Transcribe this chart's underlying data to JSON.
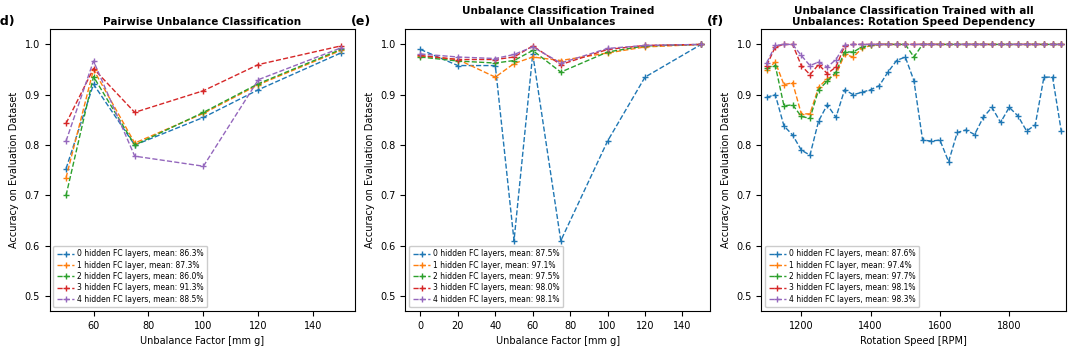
{
  "subplot_d": {
    "title": "Pairwise Unbalance Classification",
    "label": "(d)",
    "xlabel": "Unbalance Factor [mm g]",
    "ylabel": "Accuracy on Evaluation Dataset",
    "x": [
      50,
      60,
      75,
      100,
      120,
      150
    ],
    "series": [
      {
        "label": "0 hidden FC layers, mean: 86.3%",
        "color": "#1f77b4",
        "y": [
          0.753,
          0.921,
          0.8,
          0.855,
          0.91,
          0.983
        ]
      },
      {
        "label": "1 hidden FC layer, mean: 87.3%",
        "color": "#ff7f0e",
        "y": [
          0.735,
          0.95,
          0.804,
          0.863,
          0.92,
          0.988
        ]
      },
      {
        "label": "2 hidden FC layers, mean: 86.0%",
        "color": "#2ca02c",
        "y": [
          0.7,
          0.936,
          0.8,
          0.865,
          0.922,
          0.99
        ]
      },
      {
        "label": "3 hidden FC layers, mean: 91.3%",
        "color": "#d62728",
        "y": [
          0.843,
          0.952,
          0.865,
          0.908,
          0.96,
          0.997
        ]
      },
      {
        "label": "4 hidden FC layers, mean: 88.5%",
        "color": "#9467bd",
        "y": [
          0.808,
          0.967,
          0.778,
          0.758,
          0.93,
          0.993
        ]
      }
    ],
    "ylim": [
      0.47,
      1.03
    ],
    "xlim": [
      44,
      155
    ],
    "xticks": [
      60,
      80,
      100,
      120,
      140
    ]
  },
  "subplot_e": {
    "title": "Unbalance Classification Trained\nwith all Unbalances",
    "label": "(e)",
    "xlabel": "Unbalance Factor [mm g]",
    "ylabel": "Accuracy on Evaluation Dataset",
    "x": [
      0,
      20,
      40,
      50,
      60,
      75,
      100,
      120,
      150
    ],
    "series": [
      {
        "label": "0 hidden FC layers, mean: 87.5%",
        "color": "#1f77b4",
        "y": [
          0.99,
          0.958,
          0.958,
          0.61,
          0.981,
          0.61,
          0.808,
          0.935,
          1.0
        ]
      },
      {
        "label": "1 hidden FC layer, mean: 97.1%",
        "color": "#ff7f0e",
        "y": [
          0.977,
          0.97,
          0.935,
          0.962,
          0.975,
          0.968,
          0.983,
          0.995,
          1.0
        ]
      },
      {
        "label": "2 hidden FC layers, mean: 97.5%",
        "color": "#2ca02c",
        "y": [
          0.975,
          0.967,
          0.963,
          0.968,
          0.988,
          0.945,
          0.985,
          0.997,
          1.0
        ]
      },
      {
        "label": "3 hidden FC layers, mean: 98.0%",
        "color": "#d62728",
        "y": [
          0.978,
          0.97,
          0.97,
          0.975,
          0.997,
          0.96,
          0.99,
          0.998,
          1.0
        ]
      },
      {
        "label": "4 hidden FC layers, mean: 98.1%",
        "color": "#9467bd",
        "y": [
          0.981,
          0.975,
          0.972,
          0.98,
          0.995,
          0.963,
          0.992,
          0.998,
          1.0
        ]
      }
    ],
    "ylim": [
      0.47,
      1.03
    ],
    "xlim": [
      -8,
      155
    ],
    "xticks": [
      0,
      20,
      40,
      60,
      80,
      100,
      120,
      140
    ]
  },
  "subplot_f": {
    "title": "Unbalance Classification Trained with all\nUnbalances: Rotation Speed Dependency",
    "label": "(f)",
    "xlabel": "Rotation Speed [RPM]",
    "ylabel": "Accuracy on Evaluation Dataset",
    "x": [
      1100,
      1125,
      1150,
      1175,
      1200,
      1225,
      1250,
      1275,
      1300,
      1325,
      1350,
      1375,
      1400,
      1425,
      1450,
      1475,
      1500,
      1525,
      1550,
      1575,
      1600,
      1625,
      1650,
      1675,
      1700,
      1725,
      1750,
      1775,
      1800,
      1825,
      1850,
      1875,
      1900,
      1925,
      1950
    ],
    "series": [
      {
        "label": "0 hidden FC layers, mean: 87.6%",
        "color": "#1f77b4",
        "y": [
          0.895,
          0.9,
          0.838,
          0.82,
          0.79,
          0.78,
          0.848,
          0.88,
          0.855,
          0.91,
          0.9,
          0.905,
          0.91,
          0.918,
          0.945,
          0.968,
          0.975,
          0.928,
          0.81,
          0.808,
          0.81,
          0.767,
          0.825,
          0.83,
          0.821,
          0.855,
          0.875,
          0.845,
          0.875,
          0.858,
          0.828,
          0.84,
          0.935,
          0.935,
          0.828
        ]
      },
      {
        "label": "1 hidden FC layer, mean: 97.4%",
        "color": "#ff7f0e",
        "y": [
          0.95,
          0.965,
          0.92,
          0.924,
          0.862,
          0.862,
          0.915,
          0.932,
          0.94,
          0.98,
          0.975,
          0.992,
          0.998,
          1.0,
          1.0,
          1.0,
          1.0,
          1.0,
          1.0,
          1.0,
          1.0,
          1.0,
          1.0,
          1.0,
          1.0,
          1.0,
          1.0,
          1.0,
          1.0,
          1.0,
          1.0,
          1.0,
          1.0,
          1.0,
          1.0
        ]
      },
      {
        "label": "2 hidden FC layers, mean: 97.7%",
        "color": "#2ca02c",
        "y": [
          0.954,
          0.958,
          0.878,
          0.88,
          0.857,
          0.853,
          0.91,
          0.927,
          0.945,
          0.985,
          0.985,
          0.995,
          0.998,
          1.0,
          1.0,
          1.0,
          1.0,
          0.975,
          1.0,
          1.0,
          1.0,
          1.0,
          1.0,
          1.0,
          1.0,
          1.0,
          1.0,
          1.0,
          1.0,
          1.0,
          1.0,
          1.0,
          1.0,
          1.0,
          1.0
        ]
      },
      {
        "label": "3 hidden FC layers, mean: 98.1%",
        "color": "#d62728",
        "y": [
          0.958,
          0.995,
          1.0,
          1.0,
          0.958,
          0.94,
          0.96,
          0.942,
          0.955,
          0.997,
          1.0,
          1.0,
          1.0,
          1.0,
          1.0,
          1.0,
          1.0,
          1.0,
          1.0,
          1.0,
          1.0,
          1.0,
          1.0,
          1.0,
          1.0,
          1.0,
          1.0,
          1.0,
          1.0,
          1.0,
          1.0,
          1.0,
          1.0,
          1.0,
          1.0
        ]
      },
      {
        "label": "4 hidden FC layers, mean: 98.3%",
        "color": "#9467bd",
        "y": [
          0.963,
          0.998,
          1.0,
          1.0,
          0.978,
          0.958,
          0.965,
          0.955,
          0.97,
          0.998,
          1.0,
          1.0,
          1.0,
          1.0,
          1.0,
          1.0,
          1.0,
          1.0,
          1.0,
          1.0,
          1.0,
          1.0,
          1.0,
          1.0,
          1.0,
          1.0,
          1.0,
          1.0,
          1.0,
          1.0,
          1.0,
          1.0,
          1.0,
          1.0,
          1.0
        ]
      }
    ],
    "ylim": [
      0.47,
      1.03
    ],
    "xlim": [
      1085,
      1965
    ],
    "xticks": [
      1200,
      1400,
      1600,
      1800
    ]
  },
  "fig_width": 10.72,
  "fig_height": 3.52,
  "dpi": 100
}
